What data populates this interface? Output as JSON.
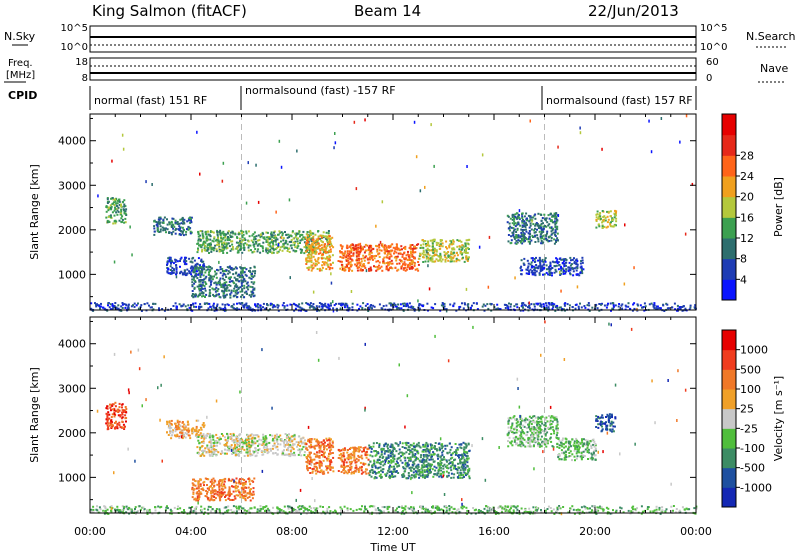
{
  "header": {
    "station": "King Salmon (fitACF)",
    "beam": "Beam 14",
    "date": "22/Jun/2013"
  },
  "top_panels": {
    "nsky_label": "N.Sky",
    "nsearch_label": "N.Search",
    "nsky_ticks": [
      "10^5",
      "10^0"
    ],
    "nsearch_ticks": [
      "10^5",
      "10^0"
    ],
    "freq_label_1": "Freq.",
    "freq_label_2": "[MHz]",
    "freq_ticks": [
      "18",
      "8"
    ],
    "nave_label": "Nave",
    "nave_ticks": [
      "60",
      "0"
    ],
    "cpid_label": "CPID",
    "cpid_segments": [
      "normal (fast) 151 RF",
      "normalsound (fast) -157 RF",
      "normalsound (fast) 157 RF"
    ]
  },
  "chart_data": [
    {
      "type": "heatmap",
      "title": "",
      "xlabel": "",
      "ylabel": "Slant Range [km]",
      "x_ticks": [
        "00:00",
        "04:00",
        "08:00",
        "12:00",
        "16:00",
        "20:00",
        "00:00"
      ],
      "y_ticks": [
        1000,
        2000,
        3000,
        4000
      ],
      "xlim_hours": [
        0,
        24
      ],
      "ylim_km": [
        200,
        4600
      ],
      "colorbar": {
        "label": "Power [dB]",
        "ticks": [
          4,
          8,
          12,
          16,
          20,
          24,
          28
        ],
        "colors": [
          "#0a14ff",
          "#1e3cb4",
          "#2d6e6e",
          "#3ca050",
          "#b4c83c",
          "#f0a01e",
          "#ff6419",
          "#e62819",
          "#e60000"
        ]
      },
      "echo_regions": [
        {
          "t": [
            0.6,
            1.4
          ],
          "r": [
            2150,
            2750
          ],
          "level": 3
        },
        {
          "t": [
            2.5,
            4.0
          ],
          "r": [
            1900,
            2300
          ],
          "level": 2
        },
        {
          "t": [
            3.0,
            4.5
          ],
          "r": [
            1000,
            1400
          ],
          "level": 1
        },
        {
          "t": [
            4.0,
            6.5
          ],
          "r": [
            500,
            1200
          ],
          "level": 2
        },
        {
          "t": [
            4.2,
            9.5
          ],
          "r": [
            1500,
            2000
          ],
          "level": 3
        },
        {
          "t": [
            8.5,
            9.6
          ],
          "r": [
            1100,
            1900
          ],
          "level": 5
        },
        {
          "t": [
            9.8,
            13.0
          ],
          "r": [
            1100,
            1700
          ],
          "level": 6
        },
        {
          "t": [
            13.0,
            15.0
          ],
          "r": [
            1300,
            1800
          ],
          "level": 4
        },
        {
          "t": [
            16.5,
            18.5
          ],
          "r": [
            1700,
            2400
          ],
          "level": 2
        },
        {
          "t": [
            17.0,
            19.5
          ],
          "r": [
            1000,
            1400
          ],
          "level": 1
        },
        {
          "t": [
            20.0,
            20.8
          ],
          "r": [
            2050,
            2450
          ],
          "level": 4
        },
        {
          "t": [
            0.0,
            24.0
          ],
          "r": [
            200,
            380
          ],
          "level": 1
        }
      ]
    },
    {
      "type": "heatmap",
      "title": "",
      "xlabel": "Time UT",
      "ylabel": "Slant Range [km]",
      "x_ticks": [
        "00:00",
        "04:00",
        "08:00",
        "12:00",
        "16:00",
        "20:00",
        "00:00"
      ],
      "y_ticks": [
        1000,
        2000,
        3000,
        4000
      ],
      "xlim_hours": [
        0,
        24
      ],
      "ylim_km": [
        200,
        4600
      ],
      "colorbar": {
        "label": "Velocity [m s⁻¹]",
        "ticks": [
          "1000",
          "500",
          "100",
          "25",
          "-25",
          "-100",
          "-500",
          "-1000"
        ],
        "colors": [
          "#1428b4",
          "#1e50a0",
          "#3c8c64",
          "#50be3c",
          "#c8c8c8",
          "#f0a028",
          "#f07828",
          "#f03c1e",
          "#e60000"
        ]
      },
      "echo_regions": [
        {
          "t": [
            0.6,
            1.4
          ],
          "r": [
            2100,
            2700
          ],
          "level": 7
        },
        {
          "t": [
            3.0,
            4.5
          ],
          "r": [
            1900,
            2300
          ],
          "level": 5
        },
        {
          "t": [
            4.0,
            6.5
          ],
          "r": [
            500,
            1000
          ],
          "level": 6
        },
        {
          "t": [
            4.2,
            8.5
          ],
          "r": [
            1500,
            2000
          ],
          "level": 4
        },
        {
          "t": [
            8.5,
            9.6
          ],
          "r": [
            1100,
            1900
          ],
          "level": 6
        },
        {
          "t": [
            9.8,
            11.0
          ],
          "r": [
            1100,
            1700
          ],
          "level": 6
        },
        {
          "t": [
            11.0,
            15.0
          ],
          "r": [
            1000,
            1800
          ],
          "level": 2
        },
        {
          "t": [
            16.5,
            18.5
          ],
          "r": [
            1700,
            2400
          ],
          "level": 3
        },
        {
          "t": [
            18.5,
            20.0
          ],
          "r": [
            1400,
            1900
          ],
          "level": 3
        },
        {
          "t": [
            20.0,
            20.8
          ],
          "r": [
            2050,
            2450
          ],
          "level": 1
        },
        {
          "t": [
            0.0,
            24.0
          ],
          "r": [
            200,
            380
          ],
          "level": 3
        }
      ]
    }
  ]
}
